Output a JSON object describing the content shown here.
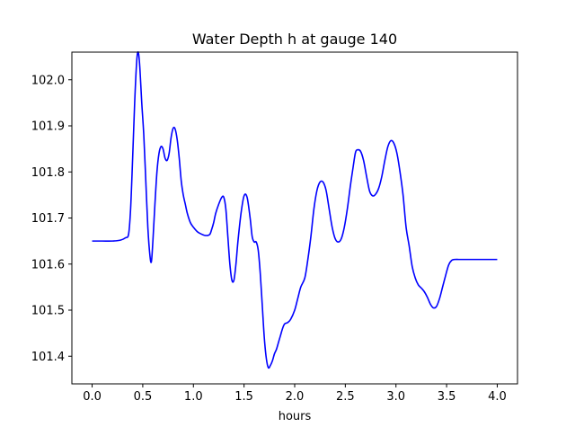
{
  "chart_data": {
    "type": "line",
    "title": "Water Depth h at gauge 140",
    "xlabel": "hours",
    "ylabel": "",
    "xlim": [
      -0.2,
      4.2
    ],
    "ylim": [
      101.34,
      102.06
    ],
    "xticks": [
      0.0,
      0.5,
      1.0,
      1.5,
      2.0,
      2.5,
      3.0,
      3.5,
      4.0
    ],
    "xtick_labels": [
      "0.0",
      "0.5",
      "1.0",
      "1.5",
      "2.0",
      "2.5",
      "3.0",
      "3.5",
      "4.0"
    ],
    "yticks": [
      101.4,
      101.5,
      101.6,
      101.7,
      101.8,
      101.9,
      102.0
    ],
    "ytick_labels": [
      "101.4",
      "101.5",
      "101.6",
      "101.7",
      "101.8",
      "101.9",
      "102.0"
    ],
    "grid": false,
    "series": [
      {
        "color": "#0000ff",
        "x": [
          0.0,
          0.1,
          0.2,
          0.28,
          0.33,
          0.36,
          0.38,
          0.4,
          0.42,
          0.44,
          0.455,
          0.47,
          0.49,
          0.51,
          0.53,
          0.55,
          0.57,
          0.585,
          0.6,
          0.62,
          0.64,
          0.66,
          0.68,
          0.7,
          0.72,
          0.74,
          0.76,
          0.78,
          0.8,
          0.82,
          0.84,
          0.86,
          0.88,
          0.9,
          0.92,
          0.94,
          0.97,
          1.0,
          1.04,
          1.08,
          1.12,
          1.16,
          1.18,
          1.2,
          1.22,
          1.25,
          1.28,
          1.3,
          1.32,
          1.34,
          1.36,
          1.38,
          1.4,
          1.42,
          1.44,
          1.47,
          1.5,
          1.53,
          1.56,
          1.58,
          1.6,
          1.62,
          1.64,
          1.66,
          1.68,
          1.7,
          1.72,
          1.74,
          1.76,
          1.78,
          1.8,
          1.82,
          1.84,
          1.86,
          1.88,
          1.9,
          1.93,
          1.96,
          2.0,
          2.03,
          2.06,
          2.1,
          2.13,
          2.16,
          2.19,
          2.22,
          2.25,
          2.28,
          2.31,
          2.34,
          2.37,
          2.4,
          2.43,
          2.46,
          2.49,
          2.52,
          2.55,
          2.58,
          2.6,
          2.62,
          2.65,
          2.68,
          2.71,
          2.74,
          2.77,
          2.8,
          2.83,
          2.86,
          2.89,
          2.92,
          2.95,
          2.98,
          3.01,
          3.04,
          3.07,
          3.1,
          3.13,
          3.16,
          3.19,
          3.22,
          3.25,
          3.28,
          3.31,
          3.34,
          3.37,
          3.4,
          3.43,
          3.46,
          3.49,
          3.52,
          3.55,
          3.58,
          3.62,
          3.66,
          3.7,
          3.74,
          3.78,
          3.82,
          3.86,
          3.9,
          3.94,
          3.97,
          4.0
        ],
        "y": [
          101.65,
          101.65,
          101.65,
          101.652,
          101.657,
          101.665,
          101.72,
          101.83,
          101.95,
          102.04,
          102.06,
          102.03,
          101.95,
          101.88,
          101.78,
          101.68,
          101.62,
          101.605,
          101.65,
          101.73,
          101.8,
          101.84,
          101.855,
          101.85,
          101.83,
          101.825,
          101.84,
          101.875,
          101.895,
          101.893,
          101.87,
          101.83,
          101.78,
          101.75,
          101.73,
          101.71,
          101.69,
          101.68,
          101.67,
          101.665,
          101.662,
          101.664,
          101.675,
          101.69,
          101.71,
          101.73,
          101.745,
          101.745,
          101.72,
          101.66,
          101.6,
          101.565,
          101.565,
          101.6,
          101.65,
          101.71,
          101.748,
          101.745,
          101.7,
          101.66,
          101.648,
          101.648,
          101.63,
          101.58,
          101.51,
          101.44,
          101.395,
          101.375,
          101.38,
          101.39,
          101.405,
          101.415,
          101.43,
          101.445,
          101.46,
          101.47,
          101.473,
          101.48,
          101.5,
          101.525,
          101.55,
          101.57,
          101.61,
          101.66,
          101.72,
          101.76,
          101.778,
          101.778,
          101.76,
          101.72,
          101.68,
          101.655,
          101.648,
          101.655,
          101.68,
          101.72,
          101.77,
          101.815,
          101.842,
          101.848,
          101.845,
          101.825,
          101.79,
          101.758,
          101.748,
          101.752,
          101.765,
          101.79,
          101.825,
          101.855,
          101.868,
          101.862,
          101.84,
          101.8,
          101.75,
          101.68,
          101.64,
          101.595,
          101.57,
          101.555,
          101.548,
          101.54,
          101.528,
          101.513,
          101.505,
          101.508,
          101.525,
          101.55,
          101.575,
          101.598,
          101.608,
          101.61,
          101.61,
          101.61,
          101.61,
          101.61,
          101.61,
          101.61,
          101.61,
          101.61,
          101.61,
          101.61,
          101.61
        ]
      }
    ]
  }
}
